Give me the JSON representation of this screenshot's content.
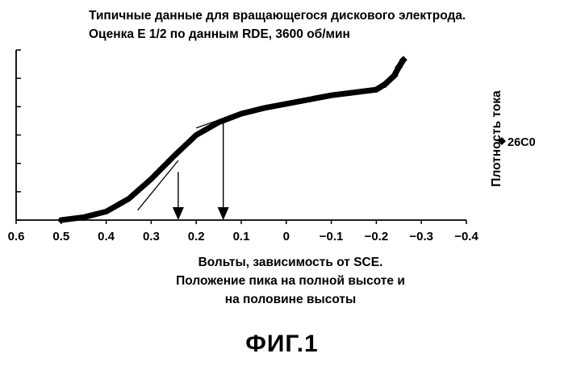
{
  "chart_data": {
    "type": "scatter",
    "title": "Типичные данные для вращающегося дискового электрода.",
    "subtitle": "Оценка Е 1/2 по данным RDE, 3600 об/мин",
    "xlabel_lines": [
      "Вольты, зависимость от SCE.",
      "Положение пика на полной высоте и",
      "на половине высоты"
    ],
    "ylabel": "Плотность тока",
    "xlim": [
      0.6,
      -0.4
    ],
    "ylim": [
      0,
      6
    ],
    "x_ticks": [
      0.6,
      0.5,
      0.4,
      0.3,
      0.2,
      0.1,
      0,
      -0.1,
      -0.2,
      -0.3,
      -0.4
    ],
    "x_tick_labels": [
      "0.6",
      "0.5",
      "0.4",
      "0.3",
      "0.2",
      "0.1",
      "0",
      "−0.1",
      "−0.2",
      "−0.3",
      "−0.4"
    ],
    "y_ticks": [
      0,
      1,
      2,
      3,
      4,
      5,
      6
    ],
    "grid": false,
    "legend_position": "right",
    "series": [
      {
        "name": "26C0",
        "color": "#000000",
        "marker": "diamond",
        "x": [
          0.5,
          0.45,
          0.4,
          0.35,
          0.3,
          0.25,
          0.2,
          0.15,
          0.1,
          0.05,
          0.0,
          -0.05,
          -0.1,
          -0.15,
          -0.2,
          -0.22,
          -0.24,
          -0.25,
          -0.26
        ],
        "y": [
          0.0,
          0.1,
          0.3,
          0.75,
          1.45,
          2.25,
          3.0,
          3.45,
          3.75,
          3.95,
          4.1,
          4.25,
          4.4,
          4.5,
          4.6,
          4.8,
          5.1,
          5.4,
          5.65
        ]
      }
    ],
    "tangent_lines": [
      {
        "x": [
          0.33,
          0.24
        ],
        "y": [
          0.35,
          2.1
        ]
      },
      {
        "x": [
          0.2,
          0.12
        ],
        "y": [
          3.25,
          3.7
        ]
      }
    ],
    "annotation_arrows": [
      {
        "x": 0.24,
        "y_from": 1.7,
        "y_to": 0.0
      },
      {
        "x": 0.14,
        "y_from": 3.5,
        "y_to": 0.0
      }
    ]
  },
  "figure_label": "ФИГ.1"
}
